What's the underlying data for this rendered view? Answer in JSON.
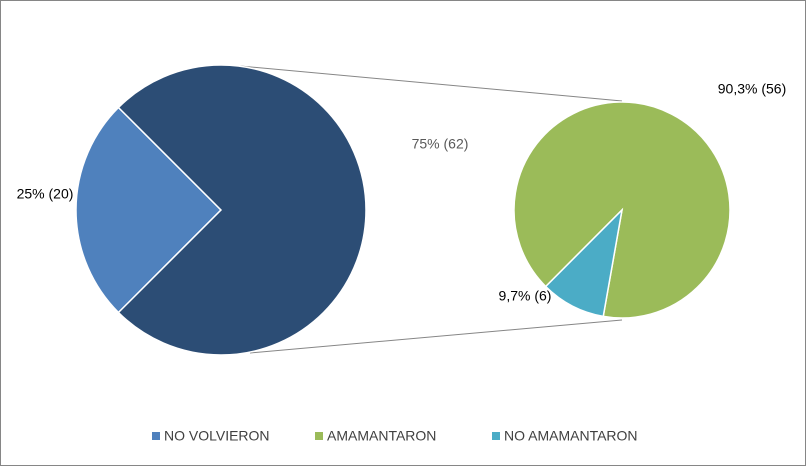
{
  "chart_data": {
    "type": "pie",
    "categories": [
      "NO VOLVIERON",
      null
    ],
    "values": [
      25,
      75
    ],
    "value_labels": [
      "25% (20)",
      "75% (62)"
    ],
    "colors": [
      "#4f81bd",
      "#2c4d75"
    ],
    "secondary": {
      "categories": [
        "AMAMANTARON",
        "NO AMAMANTARON"
      ],
      "values": [
        90.3,
        9.7
      ],
      "value_labels": [
        "90,3% (56)",
        "9,7% (6)"
      ],
      "colors": [
        "#9bbb59",
        "#4bacc6"
      ]
    },
    "legend": "bottom"
  }
}
